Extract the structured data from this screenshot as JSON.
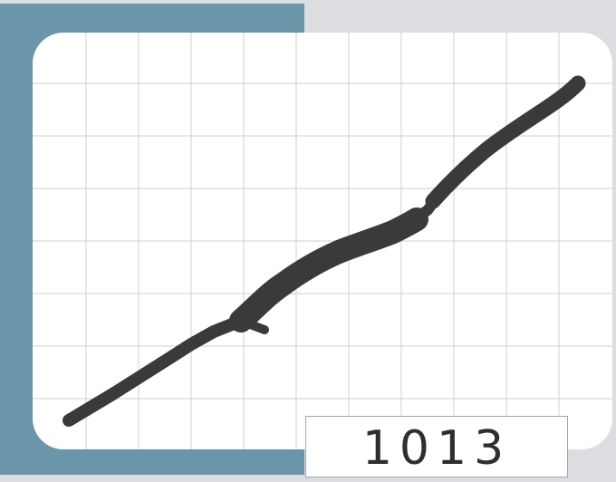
{
  "canvas": {
    "grid_color": "#cfcfcf",
    "stroke_color": "#3a3a3a",
    "background_color": "#ffffff"
  },
  "panel": {
    "color": "#6b95a9"
  },
  "counter": {
    "value": "1013"
  }
}
